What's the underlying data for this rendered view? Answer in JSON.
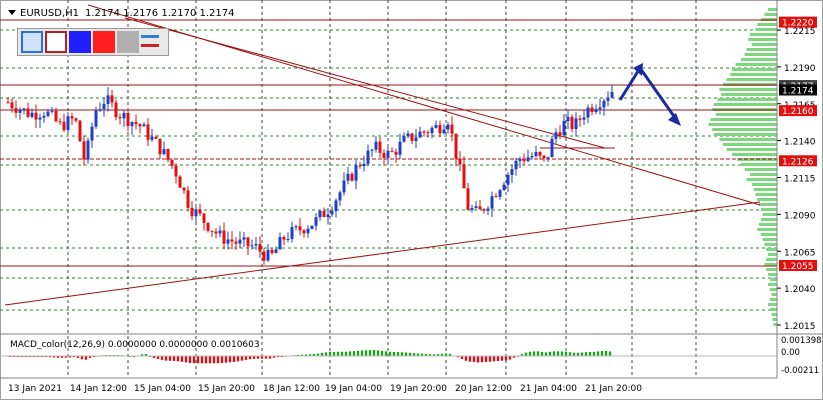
{
  "header": {
    "symbol_tf": "EURUSD,H1",
    "ohlc": "1.2174 1.2176 1.2170 1.2174"
  },
  "toolbar": {
    "buttons": [
      {
        "name": "color-swatch-light-blue",
        "color": "#cfe3ff",
        "border": "#2f6fdc"
      },
      {
        "name": "color-swatch-white-red",
        "color": "#ffffff",
        "border": "#b22222"
      },
      {
        "name": "color-swatch-blue",
        "color": "#1f1fff",
        "border": "#1f1fff"
      },
      {
        "name": "color-swatch-red",
        "color": "#ff1f1f",
        "border": "#ff1f1f"
      },
      {
        "name": "color-swatch-gray",
        "color": "#b0b0b0",
        "border": "#b0b0b0"
      },
      {
        "name": "line-style-button",
        "color": "#ffffff",
        "border": "#ffffff"
      }
    ]
  },
  "price_axis": {
    "ticks": [
      "1.2215",
      "1.2190",
      "1.2165",
      "1.2140",
      "1.2115",
      "1.2090",
      "1.2065",
      "1.2040",
      "1.2015"
    ],
    "labels": [
      {
        "text": "1.2220",
        "kind": "red"
      },
      {
        "text": "1.2177",
        "kind": "dark"
      },
      {
        "text": "1.2174",
        "kind": "black"
      },
      {
        "text": "1.2160",
        "kind": "red"
      },
      {
        "text": "1.2126",
        "kind": "red"
      },
      {
        "text": "1.2055",
        "kind": "red"
      }
    ]
  },
  "time_axis": {
    "labels": [
      "13 Jan 2021",
      "14 Jan 12:00",
      "15 Jan 04:00",
      "15 Jan 20:00",
      "18 Jan 12:00",
      "19 Jan 04:00",
      "19 Jan 20:00",
      "20 Jan 12:00",
      "21 Jan 04:00",
      "21 Jan 20:00"
    ]
  },
  "macd": {
    "label": "MACD_color(12,26,9) 0.0000000 0.0000000 0.0010603",
    "axis_ticks": [
      "0.001398",
      "0.00",
      "-0.00211"
    ]
  },
  "colors": {
    "bull": "#1e3fc8",
    "bear": "#e01010",
    "hline": "#a01010",
    "trend": "#a01010",
    "grid": "#2a8a2a",
    "volume_profile": "#7ed67e",
    "arrow": "#1a2aa0"
  }
}
